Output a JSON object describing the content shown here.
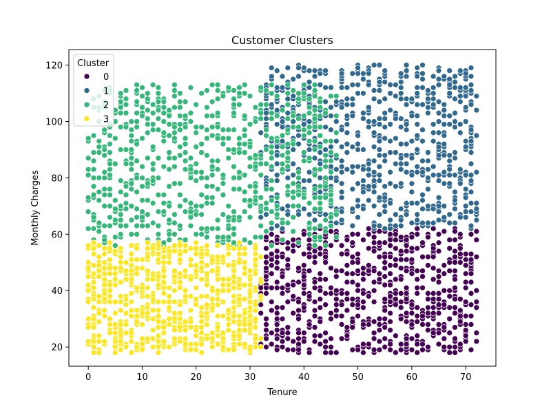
{
  "chart_data": {
    "type": "scatter",
    "title": "Customer Clusters",
    "xlabel": "Tenure",
    "ylabel": "Monthly Charges",
    "xlim": [
      -3.6,
      75.6
    ],
    "ylim": [
      13.2,
      125.5
    ],
    "xticks": [
      0,
      10,
      20,
      30,
      40,
      50,
      60,
      70
    ],
    "yticks": [
      20,
      40,
      60,
      80,
      100,
      120
    ],
    "grid": false,
    "legend": {
      "title": "Cluster",
      "placement": "top-left"
    },
    "series": [
      {
        "name": "0",
        "color": "#440154",
        "region": {
          "x": [
            32,
            72
          ],
          "y": [
            18,
            62
          ]
        },
        "points": [
          [
            33,
            55
          ],
          [
            35,
            48
          ],
          [
            36,
            52
          ],
          [
            38,
            58
          ],
          [
            40,
            45
          ],
          [
            42,
            50
          ],
          [
            44,
            56
          ],
          [
            46,
            40
          ],
          [
            48,
            53
          ],
          [
            50,
            60
          ],
          [
            52,
            47
          ],
          [
            54,
            44
          ],
          [
            56,
            52
          ],
          [
            58,
            59
          ],
          [
            60,
            46
          ],
          [
            62,
            41
          ],
          [
            64,
            55
          ],
          [
            66,
            49
          ],
          [
            68,
            61
          ],
          [
            70,
            43
          ],
          [
            72,
            58
          ],
          [
            34,
            41
          ],
          [
            37,
            36
          ],
          [
            39,
            33
          ],
          [
            41,
            38
          ],
          [
            45,
            30
          ],
          [
            47,
            35
          ],
          [
            51,
            39
          ],
          [
            55,
            33
          ],
          [
            59,
            37
          ],
          [
            63,
            34
          ],
          [
            67,
            38
          ],
          [
            71,
            31
          ],
          [
            36,
            25
          ],
          [
            40,
            22
          ],
          [
            44,
            20
          ],
          [
            48,
            24
          ],
          [
            52,
            21
          ],
          [
            56,
            19
          ],
          [
            60,
            23
          ],
          [
            64,
            25
          ],
          [
            68,
            20
          ],
          [
            72,
            22
          ],
          [
            53,
            61
          ],
          [
            57,
            58
          ],
          [
            61,
            62
          ],
          [
            65,
            57
          ],
          [
            69,
            60
          ],
          [
            49,
            29
          ],
          [
            42,
            27
          ]
        ]
      },
      {
        "name": "1",
        "color": "#31688e",
        "region": {
          "x": [
            32,
            72
          ],
          "y": [
            62,
            120
          ]
        },
        "points": [
          [
            33,
            110
          ],
          [
            35,
            104
          ],
          [
            37,
            98
          ],
          [
            39,
            92
          ],
          [
            41,
            86
          ],
          [
            43,
            80
          ],
          [
            45,
            74
          ],
          [
            47,
            68
          ],
          [
            49,
            63
          ],
          [
            51,
            115
          ],
          [
            53,
            108
          ],
          [
            55,
            101
          ],
          [
            57,
            94
          ],
          [
            59,
            88
          ],
          [
            61,
            82
          ],
          [
            63,
            76
          ],
          [
            65,
            70
          ],
          [
            67,
            64
          ],
          [
            69,
            118
          ],
          [
            71,
            111
          ],
          [
            72,
            104
          ],
          [
            34,
            116
          ],
          [
            38,
            109
          ],
          [
            42,
            102
          ],
          [
            46,
            96
          ],
          [
            50,
            90
          ],
          [
            54,
            84
          ],
          [
            58,
            78
          ],
          [
            62,
            72
          ],
          [
            66,
            66
          ],
          [
            70,
            117
          ],
          [
            44,
            112
          ],
          [
            48,
            106
          ],
          [
            52,
            100
          ],
          [
            56,
            93
          ],
          [
            60,
            87
          ],
          [
            64,
            81
          ],
          [
            68,
            75
          ],
          [
            72,
            69
          ],
          [
            40,
            95
          ],
          [
            36,
            100
          ],
          [
            47,
            117
          ],
          [
            55,
            114
          ],
          [
            61,
            119
          ],
          [
            67,
            113
          ],
          [
            71,
            97
          ],
          [
            45,
            88
          ],
          [
            53,
            79
          ],
          [
            59,
            71
          ],
          [
            65,
            96
          ]
        ]
      },
      {
        "name": "2",
        "color": "#35b779",
        "region": {
          "x": [
            0,
            46
          ],
          "y": [
            56,
            113
          ]
        },
        "points": [
          [
            0,
            81
          ],
          [
            0,
            73
          ],
          [
            0,
            62
          ],
          [
            1,
            95
          ],
          [
            2,
            105
          ],
          [
            3,
            88
          ],
          [
            4,
            70
          ],
          [
            5,
            100
          ],
          [
            6,
            110
          ],
          [
            7,
            85
          ],
          [
            8,
            65
          ],
          [
            9,
            92
          ],
          [
            10,
            112
          ],
          [
            11,
            78
          ],
          [
            12,
            113
          ],
          [
            13,
            97
          ],
          [
            14,
            68
          ],
          [
            15,
            89
          ],
          [
            16,
            113
          ],
          [
            17,
            74
          ],
          [
            18,
            102
          ],
          [
            19,
            83
          ],
          [
            20,
            106
          ],
          [
            21,
            60
          ],
          [
            22,
            94
          ],
          [
            23,
            77
          ],
          [
            24,
            103
          ],
          [
            25,
            109
          ],
          [
            26,
            66
          ],
          [
            27,
            90
          ],
          [
            28,
            110
          ],
          [
            29,
            72
          ],
          [
            30,
            99
          ],
          [
            31,
            84
          ],
          [
            32,
            63
          ],
          [
            33,
            95
          ],
          [
            34,
            79
          ],
          [
            35,
            70
          ],
          [
            36,
            88
          ],
          [
            37,
            74
          ],
          [
            38,
            66
          ],
          [
            39,
            82
          ],
          [
            40,
            73
          ],
          [
            41,
            64
          ],
          [
            42,
            76
          ],
          [
            43,
            69
          ],
          [
            44,
            61
          ],
          [
            45,
            66
          ],
          [
            3,
            58
          ],
          [
            14,
            57
          ]
        ]
      },
      {
        "name": "3",
        "color": "#fde725",
        "region": {
          "x": [
            0,
            32
          ],
          "y": [
            18,
            57
          ]
        },
        "points": [
          [
            0,
            56
          ],
          [
            0,
            48
          ],
          [
            0,
            40
          ],
          [
            0,
            30
          ],
          [
            0,
            22
          ],
          [
            1,
            53
          ],
          [
            2,
            45
          ],
          [
            3,
            37
          ],
          [
            4,
            28
          ],
          [
            5,
            20
          ],
          [
            6,
            55
          ],
          [
            7,
            47
          ],
          [
            8,
            39
          ],
          [
            9,
            31
          ],
          [
            10,
            21
          ],
          [
            11,
            52
          ],
          [
            12,
            44
          ],
          [
            13,
            36
          ],
          [
            14,
            25
          ],
          [
            15,
            20
          ],
          [
            16,
            54
          ],
          [
            17,
            46
          ],
          [
            18,
            38
          ],
          [
            19,
            27
          ],
          [
            20,
            21
          ],
          [
            21,
            50
          ],
          [
            22,
            42
          ],
          [
            23,
            34
          ],
          [
            24,
            24
          ],
          [
            25,
            20
          ],
          [
            26,
            53
          ],
          [
            27,
            45
          ],
          [
            28,
            37
          ],
          [
            29,
            26
          ],
          [
            30,
            19
          ],
          [
            31,
            51
          ],
          [
            32,
            43
          ],
          [
            31,
            35
          ],
          [
            30,
            28
          ],
          [
            29,
            21
          ],
          [
            28,
            55
          ],
          [
            27,
            41
          ],
          [
            26,
            33
          ],
          [
            25,
            23
          ],
          [
            24,
            56
          ],
          [
            22,
            35
          ],
          [
            20,
            47
          ],
          [
            18,
            23
          ],
          [
            32,
            38
          ],
          [
            31,
            20
          ]
        ]
      }
    ]
  }
}
